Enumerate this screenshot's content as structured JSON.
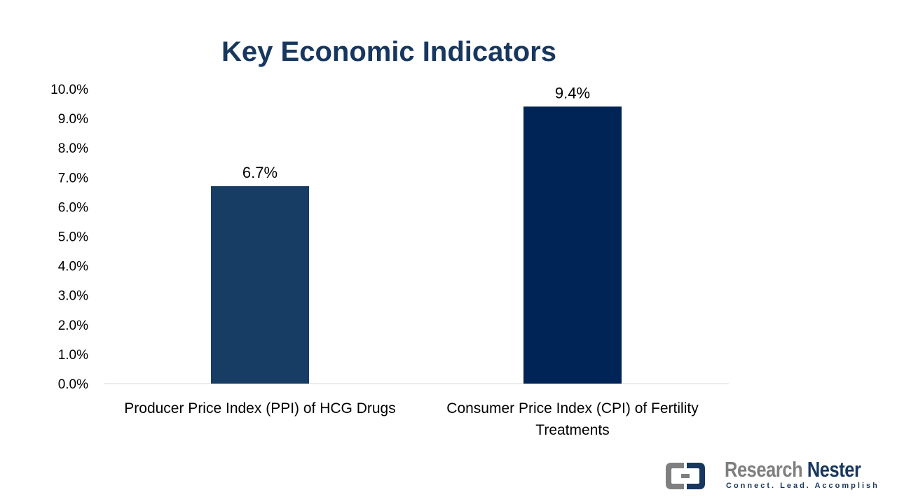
{
  "chart_data": {
    "type": "bar",
    "title": "Key Economic Indicators",
    "categories": [
      [
        "Producer Price Index (PPI) of HCG Drugs"
      ],
      [
        "Consumer Price Index (CPI) of Fertility",
        "Treatments"
      ]
    ],
    "values": [
      6.7,
      9.4
    ],
    "data_labels": [
      "6.7%",
      "9.4%"
    ],
    "bar_colors": [
      "#173d64",
      "#012456"
    ],
    "ylim": [
      0,
      10
    ],
    "ytick_step": 1,
    "ytick_labels": [
      "0.0%",
      "1.0%",
      "2.0%",
      "3.0%",
      "4.0%",
      "5.0%",
      "6.0%",
      "7.0%",
      "8.0%",
      "9.0%",
      "10.0%"
    ],
    "grid": false,
    "legend": "none",
    "xlabel": "",
    "ylabel": ""
  },
  "logo": {
    "word1": "Research",
    "word2": "Nester",
    "tagline": "Connect. Lead. Accomplish",
    "primary_color": "#17375e",
    "secondary_color": "#7f7f7f"
  }
}
